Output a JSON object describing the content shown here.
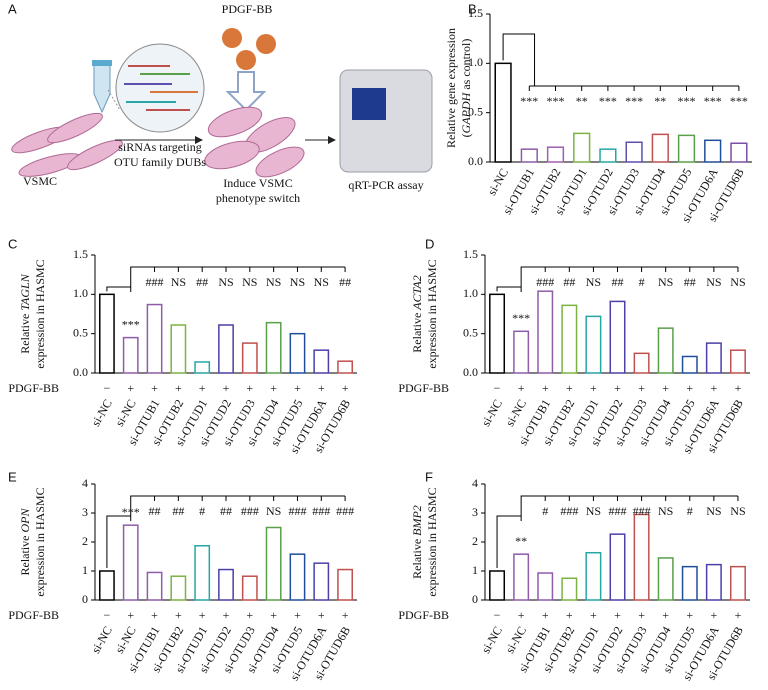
{
  "panel_a": {
    "label": "A",
    "stimulus": "PDGF-BB",
    "sirna_line1": "siRNAs targeting",
    "sirna_line2": "OTU family DUBs",
    "cells": "VSMC",
    "switch_line1": "Induce VSMC",
    "switch_line2": "phenotype switch",
    "assay": "qRT-PCR assay"
  },
  "chart_data": [
    {
      "type": "bar",
      "panel": "B",
      "ylabel": [
        [
          {
            "text": "Relative gene expression"
          }
        ],
        [
          {
            "text": "("
          },
          {
            "text": "GAPDH",
            "italic": true
          },
          {
            "text": " as control)"
          }
        ]
      ],
      "categories": [
        "si-NC",
        "si-OTUB1",
        "si-OTUB2",
        "si-OTUD1",
        "si-OTUD2",
        "si-OTUD3",
        "si-OTUD4",
        "si-OTUD5",
        "si-OTUD6A",
        "si-OTUD6B"
      ],
      "values": [
        1.0,
        0.13,
        0.15,
        0.29,
        0.13,
        0.2,
        0.28,
        0.27,
        0.22,
        0.19
      ],
      "colors": [
        "#000000",
        "#8e5ca8",
        "#a05fb0",
        "#7cb342",
        "#26a6a6",
        "#5c4fb0",
        "#c0504d",
        "#5aa048",
        "#1f4e9a",
        "#7b4fa8"
      ],
      "annotations": [
        null,
        "***",
        "***",
        "**",
        "***",
        "***",
        "**",
        "***",
        "***",
        "***"
      ],
      "ylim": [
        0,
        1.5
      ],
      "yticks": [
        {
          "value": 0,
          "label": "0.0"
        },
        {
          "value": 0.5,
          "label": "0.5"
        },
        {
          "value": 1.0,
          "label": "1.0"
        },
        {
          "value": 1.5,
          "label": "1.5"
        }
      ]
    },
    {
      "type": "bar",
      "panel": "C",
      "ylabel": [
        [
          {
            "text": "Relative "
          },
          {
            "text": "TAGLN",
            "italic": true
          }
        ],
        [
          {
            "text": "expression in HASMC"
          }
        ]
      ],
      "treatment_label": "PDGF-BB",
      "treatment": [
        "−",
        "+",
        "+",
        "+",
        "+",
        "+",
        "+",
        "+",
        "+",
        "+",
        "+"
      ],
      "categories": [
        "si-NC",
        "si-NC",
        "si-OTUB1",
        "si-OTUB2",
        "si-OTUD1",
        "si-OTUD2",
        "si-OTUD3",
        "si-OTUD4",
        "si-OTUD5",
        "si-OTUD6A",
        "si-OTUD6B"
      ],
      "values": [
        1.0,
        0.45,
        0.87,
        0.61,
        0.14,
        0.61,
        0.38,
        0.64,
        0.5,
        0.29,
        0.15
      ],
      "colors": [
        "#000000",
        "#8e5ca8",
        "#8e5ca8",
        "#7cb342",
        "#26a6a6",
        "#4b3fa8",
        "#c0504d",
        "#5aa048",
        "#1f4e9a",
        "#4b3fa8",
        "#c0504d"
      ],
      "annotations": [
        null,
        "***",
        "###",
        "NS",
        "##",
        "NS",
        "NS",
        "NS",
        "NS",
        "NS",
        "##"
      ],
      "ylim": [
        0,
        1.5
      ],
      "yticks": [
        {
          "value": 0,
          "label": "0.0"
        },
        {
          "value": 0.5,
          "label": "0.5"
        },
        {
          "value": 1.0,
          "label": "1.0"
        },
        {
          "value": 1.5,
          "label": "1.5"
        }
      ]
    },
    {
      "type": "bar",
      "panel": "D",
      "ylabel": [
        [
          {
            "text": "Relative "
          },
          {
            "text": "ACTA2",
            "italic": true
          }
        ],
        [
          {
            "text": "expression in HASMC"
          }
        ]
      ],
      "treatment_label": "PDGF-BB",
      "treatment": [
        "−",
        "+",
        "+",
        "+",
        "+",
        "+",
        "+",
        "+",
        "+",
        "+",
        "+"
      ],
      "categories": [
        "si-NC",
        "si-NC",
        "si-OTUB1",
        "si-OTUB2",
        "si-OTUD1",
        "si-OTUD2",
        "si-OTUD3",
        "si-OTUD4",
        "si-OTUD5",
        "si-OTUD6A",
        "si-OTUD6B"
      ],
      "values": [
        1.0,
        0.53,
        1.04,
        0.86,
        0.72,
        0.91,
        0.25,
        0.57,
        0.21,
        0.38,
        0.29
      ],
      "colors": [
        "#000000",
        "#8e5ca8",
        "#8e5ca8",
        "#7cb342",
        "#26a6a6",
        "#4b3fa8",
        "#c0504d",
        "#5aa048",
        "#1f4e9a",
        "#4b3fa8",
        "#c0504d"
      ],
      "annotations": [
        null,
        "***",
        "###",
        "##",
        "NS",
        "##",
        "#",
        "NS",
        "##",
        "NS",
        "NS"
      ],
      "ylim": [
        0,
        1.5
      ],
      "yticks": [
        {
          "value": 0,
          "label": "0.0"
        },
        {
          "value": 0.5,
          "label": "0.5"
        },
        {
          "value": 1.0,
          "label": "1.0"
        },
        {
          "value": 1.5,
          "label": "1.5"
        }
      ]
    },
    {
      "type": "bar",
      "panel": "E",
      "ylabel": [
        [
          {
            "text": "Relative "
          },
          {
            "text": "OPN",
            "italic": true
          }
        ],
        [
          {
            "text": "expression in HASMC"
          }
        ]
      ],
      "treatment_label": "PDGF-BB",
      "treatment": [
        "−",
        "+",
        "+",
        "+",
        "+",
        "+",
        "+",
        "+",
        "+",
        "+",
        "+"
      ],
      "categories": [
        "si-NC",
        "si-NC",
        "si-OTUB1",
        "si-OTUB2",
        "si-OTUD1",
        "si-OTUD2",
        "si-OTUD3",
        "si-OTUD4",
        "si-OTUD5",
        "si-OTUD6A",
        "si-OTUD6B"
      ],
      "values": [
        1.0,
        2.58,
        0.95,
        0.82,
        1.87,
        1.05,
        0.82,
        2.5,
        1.58,
        1.27,
        1.05
      ],
      "colors": [
        "#000000",
        "#8e5ca8",
        "#8e5ca8",
        "#7cb342",
        "#26a6a6",
        "#4b3fa8",
        "#c0504d",
        "#5aa048",
        "#1f4e9a",
        "#4b3fa8",
        "#c0504d"
      ],
      "annotations": [
        null,
        "***",
        "##",
        "##",
        "#",
        "##",
        "###",
        "NS",
        "###",
        "###",
        "###"
      ],
      "ylim": [
        0,
        4
      ],
      "yticks": [
        0,
        1,
        2,
        3,
        4
      ]
    },
    {
      "type": "bar",
      "panel": "F",
      "ylabel": [
        [
          {
            "text": "Relative "
          },
          {
            "text": "BMP2",
            "italic": true
          }
        ],
        [
          {
            "text": "expression in HASMC"
          }
        ]
      ],
      "treatment_label": "PDGF-BB",
      "treatment": [
        "−",
        "+",
        "+",
        "+",
        "+",
        "+",
        "+",
        "+",
        "+",
        "+",
        "+"
      ],
      "categories": [
        "si-NC",
        "si-NC",
        "si-OTUB1",
        "si-OTUB2",
        "si-OTUD1",
        "si-OTUD2",
        "si-OTUD3",
        "si-OTUD4",
        "si-OTUD5",
        "si-OTUD6A",
        "si-OTUD6B"
      ],
      "values": [
        1.0,
        1.58,
        0.93,
        0.75,
        1.63,
        2.27,
        2.95,
        1.45,
        1.15,
        1.22,
        1.15
      ],
      "colors": [
        "#000000",
        "#8e5ca8",
        "#8e5ca8",
        "#7cb342",
        "#26a6a6",
        "#4b3fa8",
        "#c0504d",
        "#5aa048",
        "#1f4e9a",
        "#4b3fa8",
        "#c0504d"
      ],
      "annotations": [
        null,
        "**",
        "#",
        "###",
        "NS",
        "###",
        "###",
        "NS",
        "#",
        "NS",
        "NS"
      ],
      "ylim": [
        0,
        4
      ],
      "yticks": [
        0,
        1,
        2,
        3,
        4
      ]
    }
  ]
}
